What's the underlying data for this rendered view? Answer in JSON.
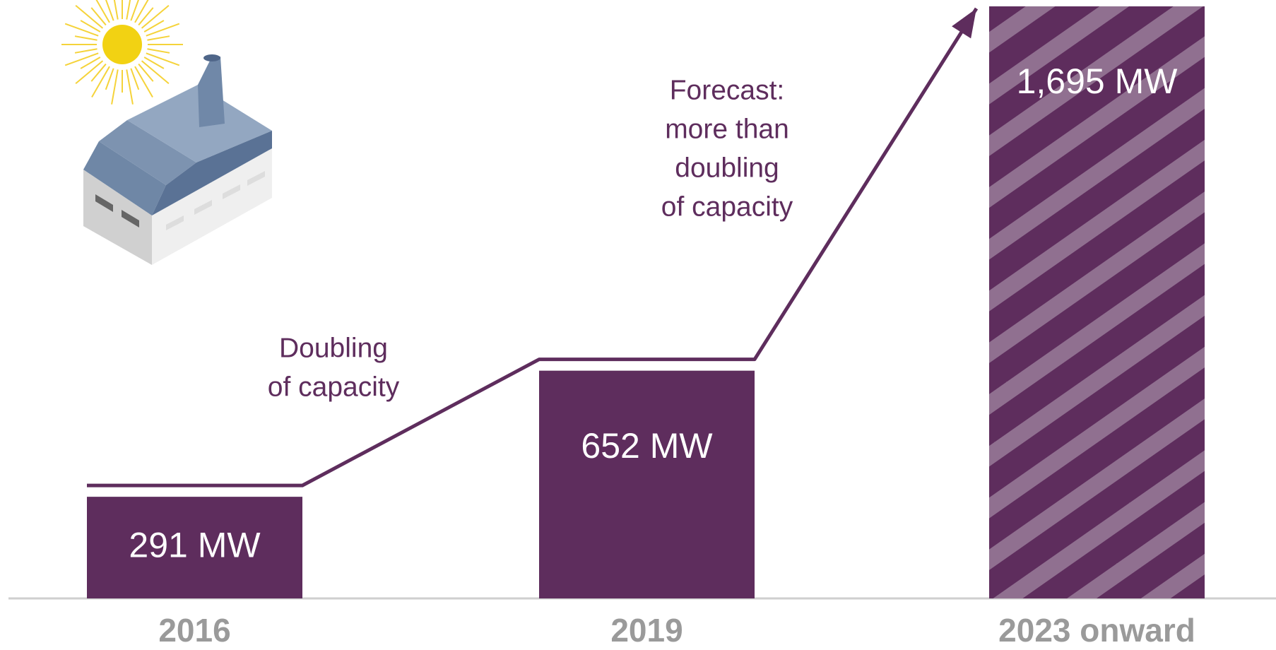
{
  "chart_data": {
    "type": "bar",
    "categories": [
      "2016",
      "2019",
      "2023 onward"
    ],
    "values": [
      291,
      652,
      1695
    ],
    "value_labels": [
      "291 MW",
      "652 MW",
      "1,695 MW"
    ],
    "color": "#5e2d5d",
    "hatched": [
      false,
      false,
      true
    ],
    "annotations": [
      {
        "lines": [
          "Doubling",
          "of capacity"
        ]
      },
      {
        "lines": [
          "Forecast:",
          "more than",
          "doubling",
          "of capacity"
        ]
      }
    ]
  }
}
